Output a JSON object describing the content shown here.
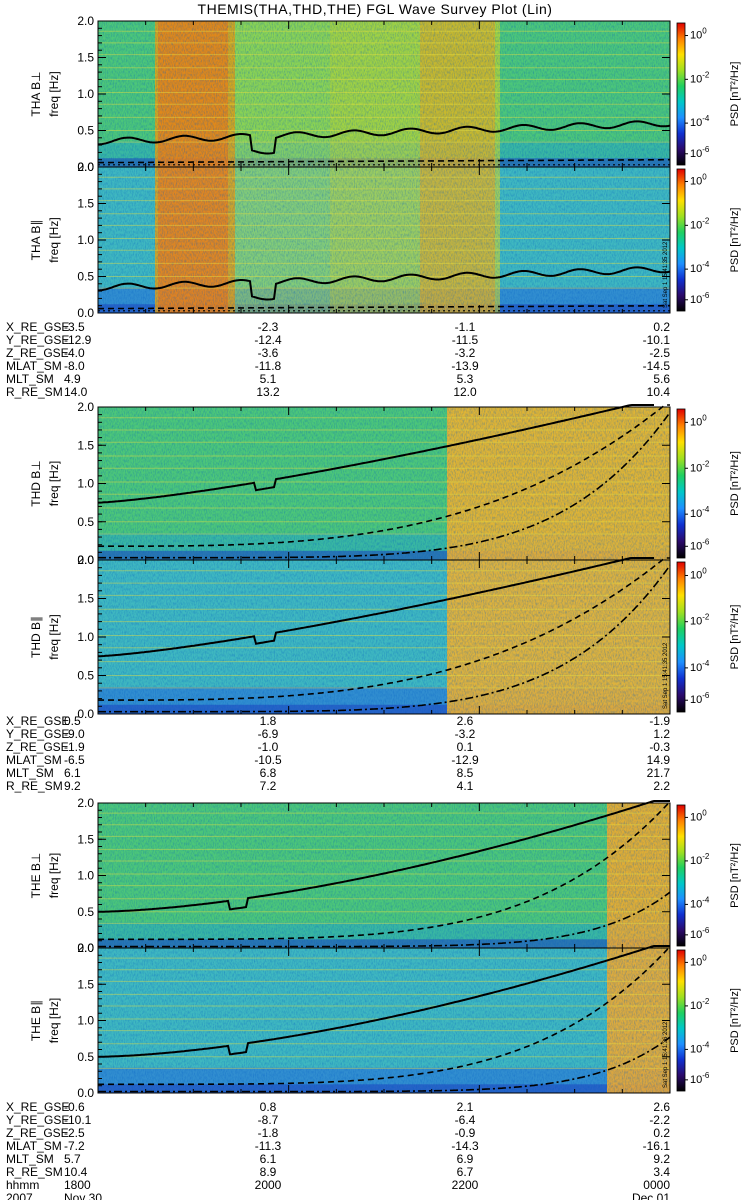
{
  "title": "THEMIS(THA,THD,THE) FGL Wave Survey Plot (Lin)",
  "colorbar": {
    "label": "PSD [nT²/Hz]",
    "ticks": [
      {
        "label": "10",
        "exp": "0"
      },
      {
        "label": "10",
        "exp": "-2"
      },
      {
        "label": "10",
        "exp": "-4"
      },
      {
        "label": "10",
        "exp": "-6"
      }
    ],
    "colors": [
      "#000000",
      "#2b0a6b",
      "#1030d0",
      "#1e90ff",
      "#00c8c8",
      "#20d060",
      "#a0e020",
      "#ffe000",
      "#ff8000",
      "#e00000"
    ]
  },
  "ylabel_freq": "freq [Hz]",
  "yticks": [
    "0.0",
    "0.5",
    "1.0",
    "1.5",
    "2.0"
  ],
  "stamps": [
    "Sat Sep 1 15:41:35 2012",
    "Sat Sep 1 15:41:35 2012",
    "Sat Sep 1 15:41:36 2012"
  ],
  "chart_data": [
    {
      "type": "heatmap",
      "probe": "THA",
      "panel": "THA B⊥",
      "ylabel": "THA B⊥",
      "y_axis_label": "freq [Hz]",
      "ylim": [
        0,
        2.0
      ],
      "x_range": [
        "1800",
        "0000"
      ]
    },
    {
      "type": "heatmap",
      "probe": "THA",
      "panel": "THA B∥",
      "ylabel": "THA B∥",
      "y_axis_label": "freq [Hz]",
      "ylim": [
        0,
        2.0
      ],
      "x_range": [
        "1800",
        "0000"
      ]
    },
    {
      "type": "heatmap",
      "probe": "THD",
      "panel": "THD B⊥",
      "ylabel": "THD B⊥",
      "y_axis_label": "freq [Hz]",
      "ylim": [
        0,
        2.0
      ],
      "x_range": [
        "1800",
        "0000"
      ]
    },
    {
      "type": "heatmap",
      "probe": "THD",
      "panel": "THD B∥",
      "ylabel": "THD B∥",
      "y_axis_label": "freq [Hz]",
      "ylim": [
        0,
        2.0
      ],
      "x_range": [
        "1800",
        "0000"
      ]
    },
    {
      "type": "heatmap",
      "probe": "THE",
      "panel": "THE B⊥",
      "ylabel": "THE B⊥",
      "y_axis_label": "freq [Hz]",
      "ylim": [
        0,
        2.0
      ],
      "x_range": [
        "1800",
        "0000"
      ]
    },
    {
      "type": "heatmap",
      "probe": "THE",
      "panel": "THE B∥",
      "ylabel": "THE B∥",
      "y_axis_label": "freq [Hz]",
      "ylim": [
        0,
        2.0
      ],
      "x_range": [
        "1800",
        "0000"
      ]
    }
  ],
  "ephem": [
    {
      "probe": "THA",
      "rows": [
        {
          "label": "X_RE_GSE",
          "values": [
            "-3.5",
            "-2.3",
            "-1.1",
            "0.2"
          ]
        },
        {
          "label": "Y_RE_GSE",
          "values": [
            "-12.9",
            "-12.4",
            "-11.5",
            "-10.1"
          ]
        },
        {
          "label": "Z_RE_GSE",
          "values": [
            "-4.0",
            "-3.6",
            "-3.2",
            "-2.5"
          ]
        },
        {
          "label": "MLAT_SM",
          "values": [
            "-8.0",
            "-11.8",
            "-13.9",
            "-14.5"
          ]
        },
        {
          "label": "MLT_SM",
          "values": [
            "4.9",
            "5.1",
            "5.3",
            "5.6"
          ]
        },
        {
          "label": "R_RE_SM",
          "values": [
            "14.0",
            "13.2",
            "12.0",
            "10.4"
          ]
        }
      ]
    },
    {
      "probe": "THD",
      "rows": [
        {
          "label": "X_RE_GSE",
          "values": [
            "0.5",
            "1.8",
            "2.6",
            "-1.9"
          ]
        },
        {
          "label": "Y_RE_GSE",
          "values": [
            "-9.0",
            "-6.9",
            "-3.2",
            "1.2"
          ]
        },
        {
          "label": "Z_RE_GSE",
          "values": [
            "-1.9",
            "-1.0",
            "0.1",
            "-0.3"
          ]
        },
        {
          "label": "MLAT_SM",
          "values": [
            "-6.5",
            "-10.5",
            "-12.9",
            "14.9"
          ]
        },
        {
          "label": "MLT_SM",
          "values": [
            "6.1",
            "6.8",
            "8.5",
            "21.7"
          ]
        },
        {
          "label": "R_RE_SM",
          "values": [
            "9.2",
            "7.2",
            "4.1",
            "2.2"
          ]
        }
      ]
    },
    {
      "probe": "THE",
      "rows": [
        {
          "label": "X_RE_GSE",
          "values": [
            "-0.6",
            "0.8",
            "2.1",
            "2.6"
          ]
        },
        {
          "label": "Y_RE_GSE",
          "values": [
            "-10.1",
            "-8.7",
            "-6.4",
            "-2.2"
          ]
        },
        {
          "label": "Z_RE_GSE",
          "values": [
            "-2.5",
            "-1.8",
            "-0.9",
            "0.2"
          ]
        },
        {
          "label": "MLAT_SM",
          "values": [
            "-7.2",
            "-11.3",
            "-14.3",
            "-16.1"
          ]
        },
        {
          "label": "MLT_SM",
          "values": [
            "5.7",
            "6.1",
            "6.9",
            "9.2"
          ]
        },
        {
          "label": "R_RE_SM",
          "values": [
            "10.4",
            "8.9",
            "6.7",
            "3.4"
          ]
        },
        {
          "label": "hhmm",
          "values": [
            "1800",
            "2000",
            "2200",
            "0000"
          ]
        },
        {
          "label": "2007",
          "values": [
            "Nov 30",
            "",
            "",
            "Dec 01"
          ]
        }
      ]
    }
  ]
}
